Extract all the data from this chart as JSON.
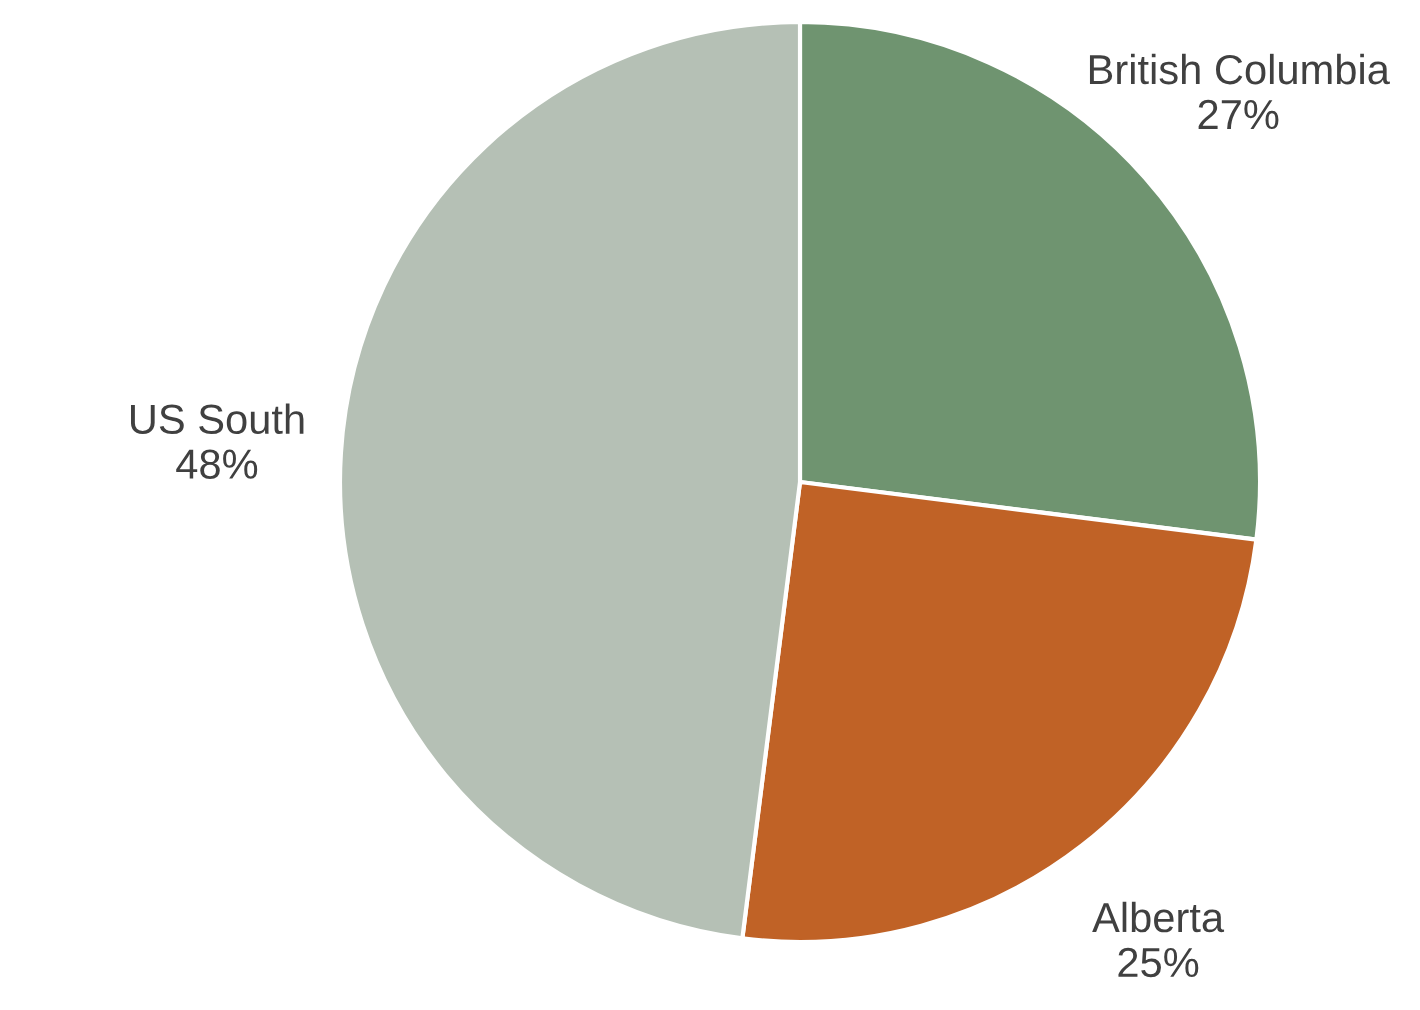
{
  "chart_data": {
    "type": "pie",
    "categories": [
      "British Columbia",
      "Alberta",
      "US South"
    ],
    "values": [
      27,
      25,
      48
    ],
    "value_labels": [
      "27%",
      "25%",
      "48%"
    ],
    "colors": [
      "#6f9470",
      "#c06226",
      "#b5c0b5"
    ]
  }
}
